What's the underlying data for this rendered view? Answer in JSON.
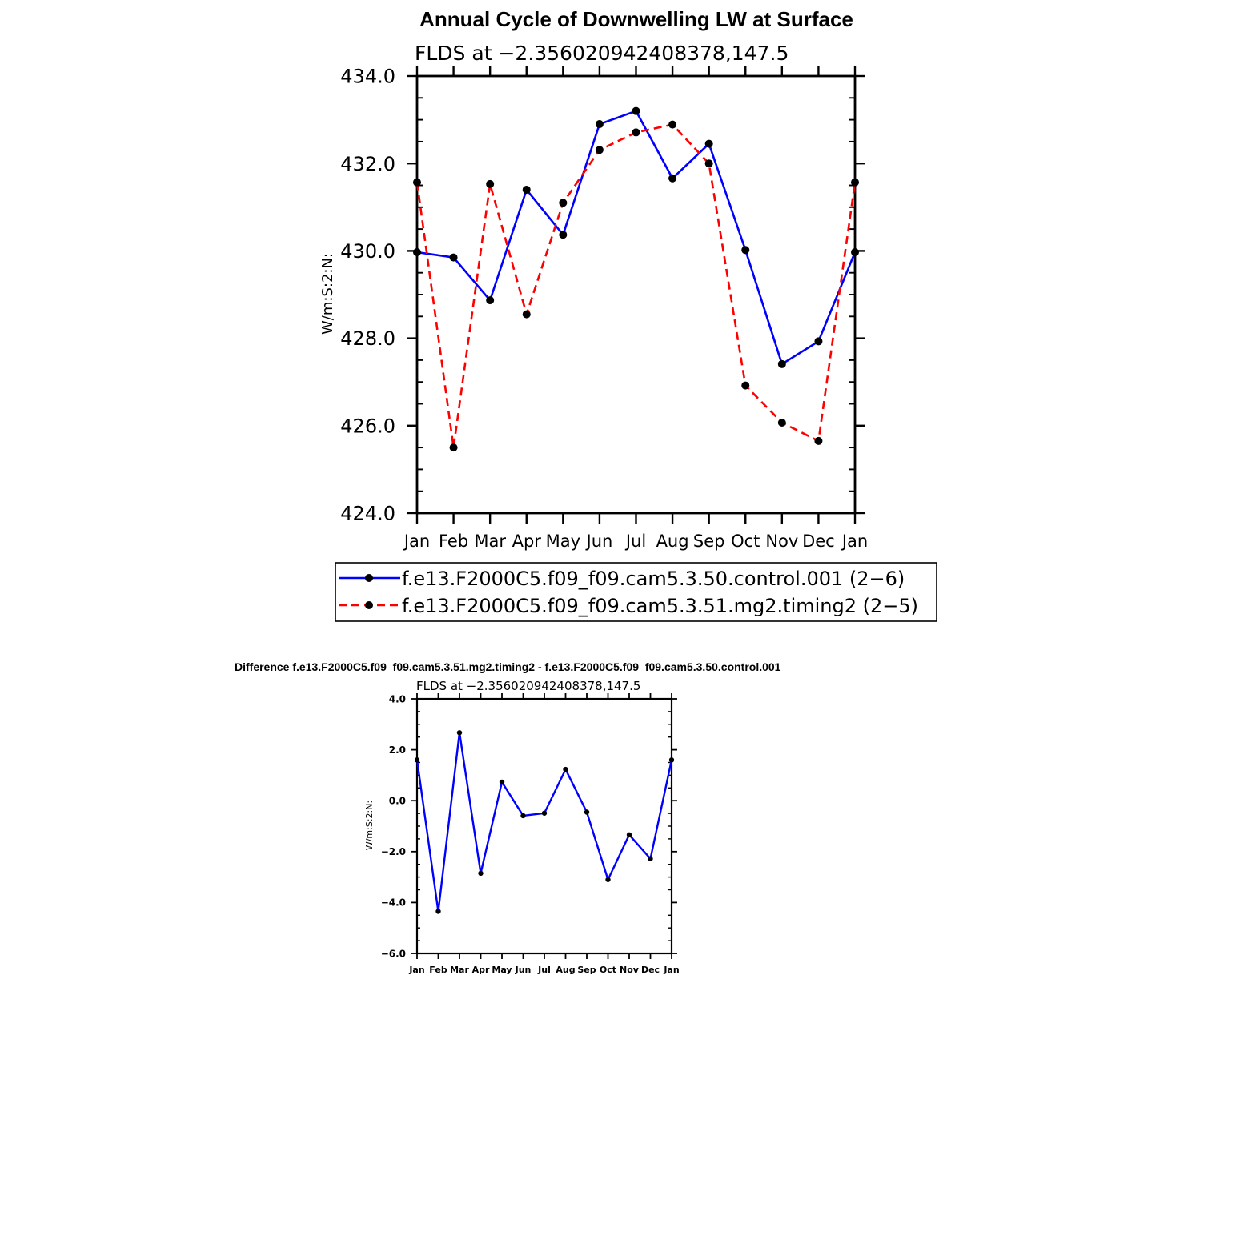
{
  "chart_data": [
    {
      "type": "line",
      "title": "Annual Cycle of Downwelling LW at Surface",
      "subtitle": "FLDS at −2.356020942408378,147.5",
      "ylabel": "W/m:S:2:N:",
      "xlabel": "",
      "ylim": [
        424.0,
        434.0
      ],
      "yticks": [
        "424.0",
        "426.0",
        "428.0",
        "430.0",
        "432.0",
        "434.0"
      ],
      "categories": [
        "Jan",
        "Feb",
        "Mar",
        "Apr",
        "May",
        "Jun",
        "Jul",
        "Aug",
        "Sep",
        "Oct",
        "Nov",
        "Dec",
        "Jan"
      ],
      "grid": false,
      "legend_position": "bottom",
      "series": [
        {
          "name": "f.e13.F2000C5.f09_f09.cam5.3.50.control.001 (2−6)",
          "color": "#0000ff",
          "dash": "solid",
          "values": [
            429.97,
            429.85,
            428.87,
            431.4,
            430.37,
            432.9,
            433.2,
            431.66,
            432.45,
            430.02,
            427.41,
            427.93,
            429.97
          ]
        },
        {
          "name": "f.e13.F2000C5.f09_f09.cam5.3.51.mg2.timing2 (2−5)",
          "color": "#ff0000",
          "dash": "dashed",
          "values": [
            431.57,
            425.5,
            431.53,
            428.55,
            431.1,
            432.31,
            432.71,
            432.89,
            432.0,
            426.92,
            426.07,
            425.65,
            431.57
          ]
        }
      ]
    },
    {
      "type": "line",
      "title": "Difference f.e13.F2000C5.f09_f09.cam5.3.51.mg2.timing2 - f.e13.F2000C5.f09_f09.cam5.3.50.control.001",
      "subtitle": "FLDS at −2.356020942408378,147.5",
      "ylabel": "W/m:S:2:N:",
      "xlabel": "",
      "ylim": [
        -6.0,
        4.0
      ],
      "yticks": [
        "−6.0",
        "−4.0",
        "−2.0",
        "0.0",
        "2.0",
        "4.0"
      ],
      "categories": [
        "Jan",
        "Feb",
        "Mar",
        "Apr",
        "May",
        "Jun",
        "Jul",
        "Aug",
        "Sep",
        "Oct",
        "Nov",
        "Dec",
        "Jan"
      ],
      "grid": false,
      "series": [
        {
          "color": "#0000ff",
          "dash": "solid",
          "values": [
            1.6,
            -4.35,
            2.67,
            -2.85,
            0.73,
            -0.59,
            -0.49,
            1.23,
            -0.45,
            -3.1,
            -1.34,
            -2.28,
            1.6
          ]
        }
      ]
    }
  ]
}
